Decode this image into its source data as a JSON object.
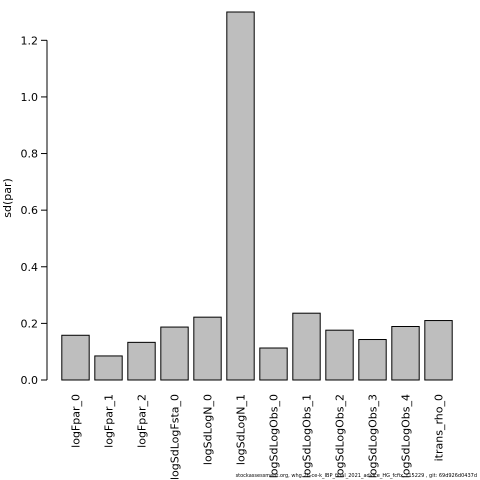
{
  "chart_data": {
    "type": "bar",
    "title": "",
    "xlabel": "",
    "ylabel": "sd(par)",
    "ylim": [
      0,
      1.3
    ],
    "yticks": [
      "0.0",
      "0.2",
      "0.4",
      "0.6",
      "0.8",
      "1.0",
      "1.2"
    ],
    "ytick_values": [
      0,
      0.2,
      0.4,
      0.6,
      0.8,
      1.0,
      1.2
    ],
    "categories": [
      "logFpar_0",
      "logFpar_1",
      "logFpar_2",
      "logSdLogFsta_0",
      "logSdLogN_0",
      "logSdLogN_1",
      "logSdLogObs_0",
      "logSdLogObs_1",
      "logSdLogObs_2",
      "logSdLogObs_3",
      "logSdLogObs_4",
      "itrans_rho_0"
    ],
    "values": [
      0.158,
      0.085,
      0.133,
      0.187,
      0.222,
      1.3,
      0.113,
      0.236,
      0.176,
      0.143,
      0.189,
      0.21
    ],
    "bar_color": "#bebebe",
    "edge_color": "#000000",
    "grid": false,
    "legend": "none"
  },
  "footer": {
    "text": "stockassessment.org, whg.7b-ce-k_IBP_final_2021_advice_HG_fcfix, r15229 , git: 69d926d0437d"
  }
}
